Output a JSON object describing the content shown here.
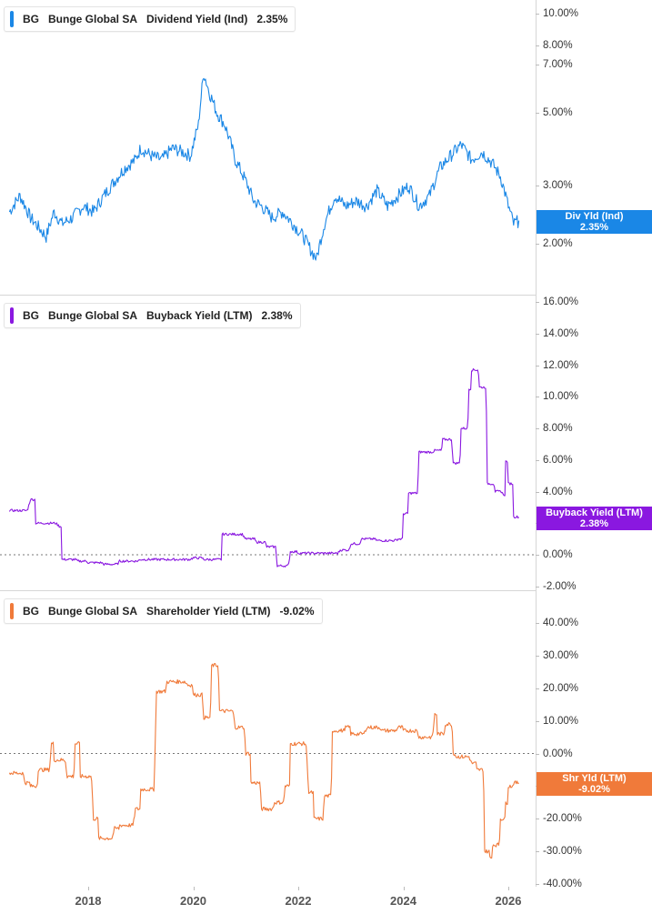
{
  "chart_data": [
    {
      "type": "line",
      "title": "BG  Bunge Global SA  Dividend Yield (Ind)  2.35%",
      "ticker": "BG",
      "company": "Bunge Global SA",
      "series_name": "Dividend Yield (Ind)",
      "current_value": "2.35%",
      "color": "#1a87e6",
      "yscale": "log",
      "y_ticks": [
        "10.00%",
        "8.00%",
        "7.00%",
        "5.00%",
        "3.00%",
        "2.00%"
      ],
      "ylim": [
        1.6,
        10.5
      ],
      "badge": {
        "label": "Div Yld (Ind)",
        "value": "2.35%"
      },
      "x": [
        2016.5,
        2016.7,
        2016.9,
        2017.0,
        2017.2,
        2017.35,
        2017.5,
        2017.7,
        2017.9,
        2018.1,
        2018.3,
        2018.5,
        2018.7,
        2018.9,
        2019.0,
        2019.2,
        2019.4,
        2019.6,
        2019.8,
        2019.95,
        2020.1,
        2020.2,
        2020.3,
        2020.45,
        2020.6,
        2020.8,
        2021.0,
        2021.15,
        2021.3,
        2021.5,
        2021.7,
        2021.9,
        2022.1,
        2022.25,
        2022.35,
        2022.5,
        2022.7,
        2022.9,
        2023.1,
        2023.3,
        2023.5,
        2023.7,
        2023.9,
        2024.1,
        2024.3,
        2024.5,
        2024.7,
        2024.9,
        2025.1,
        2025.3,
        2025.5,
        2025.7,
        2025.85,
        2026.0,
        2026.1,
        2026.2
      ],
      "values": [
        2.5,
        2.8,
        2.4,
        2.3,
        2.1,
        2.5,
        2.3,
        2.4,
        2.6,
        2.5,
        2.8,
        3.1,
        3.4,
        3.6,
        3.9,
        3.7,
        3.6,
        3.9,
        3.8,
        3.7,
        4.6,
        6.6,
        5.8,
        5.0,
        4.6,
        3.6,
        3.1,
        2.7,
        2.6,
        2.4,
        2.5,
        2.3,
        2.1,
        1.9,
        1.8,
        2.3,
        2.8,
        2.6,
        2.7,
        2.6,
        2.9,
        2.6,
        2.8,
        3.0,
        2.6,
        2.8,
        3.4,
        3.7,
        4.0,
        3.6,
        3.8,
        3.5,
        3.2,
        2.6,
        2.3,
        2.35
      ]
    },
    {
      "type": "line",
      "title": "BG  Bunge Global SA  Buyback Yield (LTM)  2.38%",
      "ticker": "BG",
      "company": "Bunge Global SA",
      "series_name": "Buyback Yield (LTM)",
      "current_value": "2.38%",
      "color": "#8a18e0",
      "yscale": "linear",
      "y_ticks": [
        "16.00%",
        "14.00%",
        "12.00%",
        "10.00%",
        "8.00%",
        "6.00%",
        "4.00%",
        "2.00%",
        "0.00%",
        "-2.00%"
      ],
      "ylim": [
        -2,
        16
      ],
      "zero_line": true,
      "badge": {
        "label": "Buyback Yield (LTM)",
        "value": "2.38%"
      },
      "x": [
        2016.5,
        2016.9,
        2017.0,
        2017.45,
        2017.5,
        2017.8,
        2018.0,
        2018.3,
        2018.6,
        2019.0,
        2019.5,
        2020.0,
        2020.2,
        2020.5,
        2020.55,
        2021.0,
        2021.2,
        2021.4,
        2021.6,
        2021.85,
        2022.0,
        2022.5,
        2022.8,
        2023.0,
        2023.2,
        2023.5,
        2023.9,
        2024.0,
        2024.1,
        2024.3,
        2024.6,
        2024.75,
        2024.95,
        2025.1,
        2025.25,
        2025.3,
        2025.45,
        2025.6,
        2025.75,
        2025.9,
        2025.95,
        2026.0,
        2026.1,
        2026.2
      ],
      "values": [
        2.8,
        3.5,
        2.0,
        1.8,
        -0.3,
        -0.4,
        -0.5,
        -0.6,
        -0.4,
        -0.3,
        -0.3,
        -0.2,
        -0.3,
        -0.3,
        1.3,
        1.0,
        0.8,
        0.5,
        -0.7,
        0.2,
        0.1,
        0.1,
        0.3,
        0.7,
        1.0,
        0.9,
        1.0,
        2.6,
        3.9,
        6.5,
        6.6,
        7.3,
        5.8,
        8.0,
        10.5,
        11.7,
        10.6,
        4.5,
        4.0,
        3.8,
        5.9,
        4.5,
        2.4,
        2.38
      ]
    },
    {
      "type": "line",
      "title": "BG  Bunge Global SA  Shareholder Yield (LTM)  -9.02%",
      "ticker": "BG",
      "company": "Bunge Global SA",
      "series_name": "Shareholder Yield (LTM)",
      "current_value": "-9.02%",
      "color": "#f07a3a",
      "yscale": "linear",
      "y_ticks": [
        "40.00%",
        "30.00%",
        "20.00%",
        "10.00%",
        "0.00%",
        "-10.00%",
        "-20.00%",
        "-30.00%",
        "-40.00%"
      ],
      "ylim": [
        -40,
        40
      ],
      "zero_line": true,
      "badge": {
        "label": "Shr Yld (LTM)",
        "value": "-9.02%"
      },
      "x": [
        2016.5,
        2016.8,
        2016.9,
        2017.05,
        2017.3,
        2017.35,
        2017.6,
        2017.75,
        2017.85,
        2018.1,
        2018.2,
        2018.5,
        2018.6,
        2018.9,
        2019.0,
        2019.3,
        2019.5,
        2019.9,
        2020.0,
        2020.2,
        2020.35,
        2020.5,
        2020.8,
        2021.0,
        2021.1,
        2021.3,
        2021.55,
        2021.75,
        2021.85,
        2022.2,
        2022.3,
        2022.5,
        2022.65,
        2022.9,
        2023.0,
        2023.3,
        2023.6,
        2023.9,
        2024.0,
        2024.3,
        2024.6,
        2024.65,
        2024.8,
        2024.95,
        2025.0,
        2025.3,
        2025.4,
        2025.55,
        2025.65,
        2025.7,
        2025.85,
        2025.95,
        2026.0,
        2026.1,
        2026.2
      ],
      "values": [
        -6,
        -9,
        -10,
        -5,
        3,
        -2,
        -7,
        3,
        -7,
        -20,
        -26,
        -23,
        -22,
        -17,
        -11,
        19,
        22,
        21,
        18,
        11,
        27,
        13,
        8,
        0,
        -9,
        -17,
        -15,
        -10,
        3,
        -12,
        -20,
        -13,
        7,
        8,
        6,
        8,
        7,
        8,
        7,
        5,
        12,
        6,
        9,
        0,
        -1,
        -3,
        -5,
        -30,
        -32,
        -28,
        -20,
        -15,
        -10,
        -9,
        -9.02
      ]
    }
  ],
  "x_axis": {
    "ticks": [
      "2018",
      "2020",
      "2022",
      "2024",
      "2026"
    ],
    "range": [
      2016.5,
      2026.6
    ]
  },
  "panels": [
    {
      "legend": {
        "ticker": "BG",
        "company": "Bunge Global SA",
        "metric": "Dividend Yield (Ind)",
        "value": "2.35%"
      }
    },
    {
      "legend": {
        "ticker": "BG",
        "company": "Bunge Global SA",
        "metric": "Buyback Yield (LTM)",
        "value": "2.38%"
      }
    },
    {
      "legend": {
        "ticker": "BG",
        "company": "Bunge Global SA",
        "metric": "Shareholder Yield (LTM)",
        "value": "-9.02%"
      }
    }
  ]
}
